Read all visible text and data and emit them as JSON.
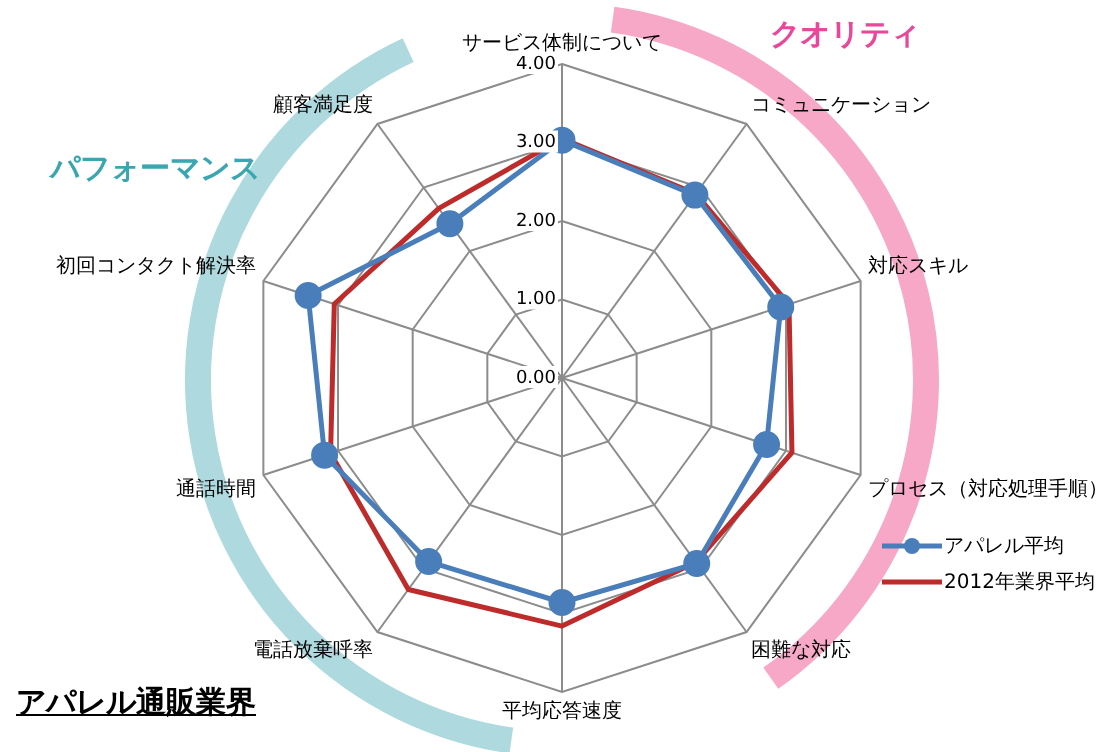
{
  "chart_data": {
    "type": "radar",
    "categories": [
      "サービス体制について",
      "コミュニケーション",
      "対応スキル",
      "プロセス（対応処理手順）",
      "困難な対応",
      "平均応答速度",
      "電話放棄呼率",
      "通話時間",
      "初回コンタクト解決率",
      "顧客満足度"
    ],
    "series": [
      {
        "name": "アパレル平均",
        "color": "#4a7ebb",
        "marker": "circle",
        "values": [
          3.03,
          2.88,
          2.93,
          2.74,
          2.92,
          2.86,
          2.89,
          3.18,
          3.4,
          2.43
        ]
      },
      {
        "name": "2012年業界平均",
        "color": "#be2b2b",
        "marker": "none",
        "values": [
          3.05,
          2.9,
          3.04,
          3.08,
          2.9,
          3.16,
          3.33,
          3.1,
          3.05,
          2.67
        ]
      }
    ],
    "ylim": [
      0,
      4
    ],
    "yticks": [
      {
        "value": 0,
        "label": "0.00"
      },
      {
        "value": 1,
        "label": "1.00"
      },
      {
        "value": 2,
        "label": "2.00"
      },
      {
        "value": 3,
        "label": "3.00"
      },
      {
        "value": 4,
        "label": "4.00"
      }
    ],
    "grid": true,
    "legend": "right",
    "annotations": [
      "クオリティ",
      "パフォーマンス",
      "アパレル通販業界"
    ]
  }
}
